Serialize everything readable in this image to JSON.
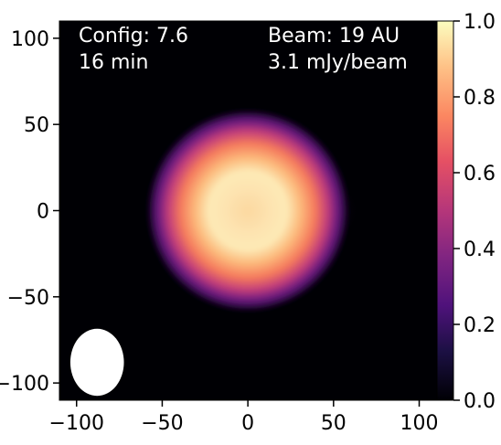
{
  "chart_data": {
    "type": "heatmap",
    "title": "",
    "xlabel": "",
    "ylabel": "",
    "xlim": [
      -110,
      120
    ],
    "ylim": [
      -110,
      110
    ],
    "x_ticks": [
      -100,
      -50,
      0,
      50,
      100
    ],
    "x_tick_labels": [
      "−100",
      "−50",
      "0",
      "50",
      "100"
    ],
    "y_ticks": [
      100,
      50,
      0,
      -50,
      -100
    ],
    "y_tick_labels": [
      "100",
      "50",
      "0",
      "−50",
      "−100"
    ],
    "colormap": "magma",
    "colorbar": {
      "range": [
        0.0,
        1.0
      ],
      "ticks": [
        0.0,
        0.2,
        0.4,
        0.6,
        0.8,
        1.0
      ],
      "tick_labels": [
        "0.0",
        "0.2",
        "0.4",
        "0.6",
        "0.8",
        "1.0"
      ]
    },
    "annotations": {
      "config_line": "Config: 7.6",
      "time_line": "16 min",
      "beam_line": "Beam: 19 AU",
      "noise_line": "3.1 mJy/beam"
    },
    "source": {
      "center": [
        0,
        0
      ],
      "peak_value": 1.0,
      "ring_radius": 12,
      "extent_radius": 35
    },
    "beam_ellipse": {
      "center": [
        -88,
        -88
      ],
      "major": 20,
      "minor": 17
    },
    "colors": {
      "background": "#000004",
      "ring": "#fcfdbf",
      "mid": "#fc8961",
      "outer": "#b73779",
      "faint": "#51127c",
      "beam": "#ffffff"
    }
  }
}
